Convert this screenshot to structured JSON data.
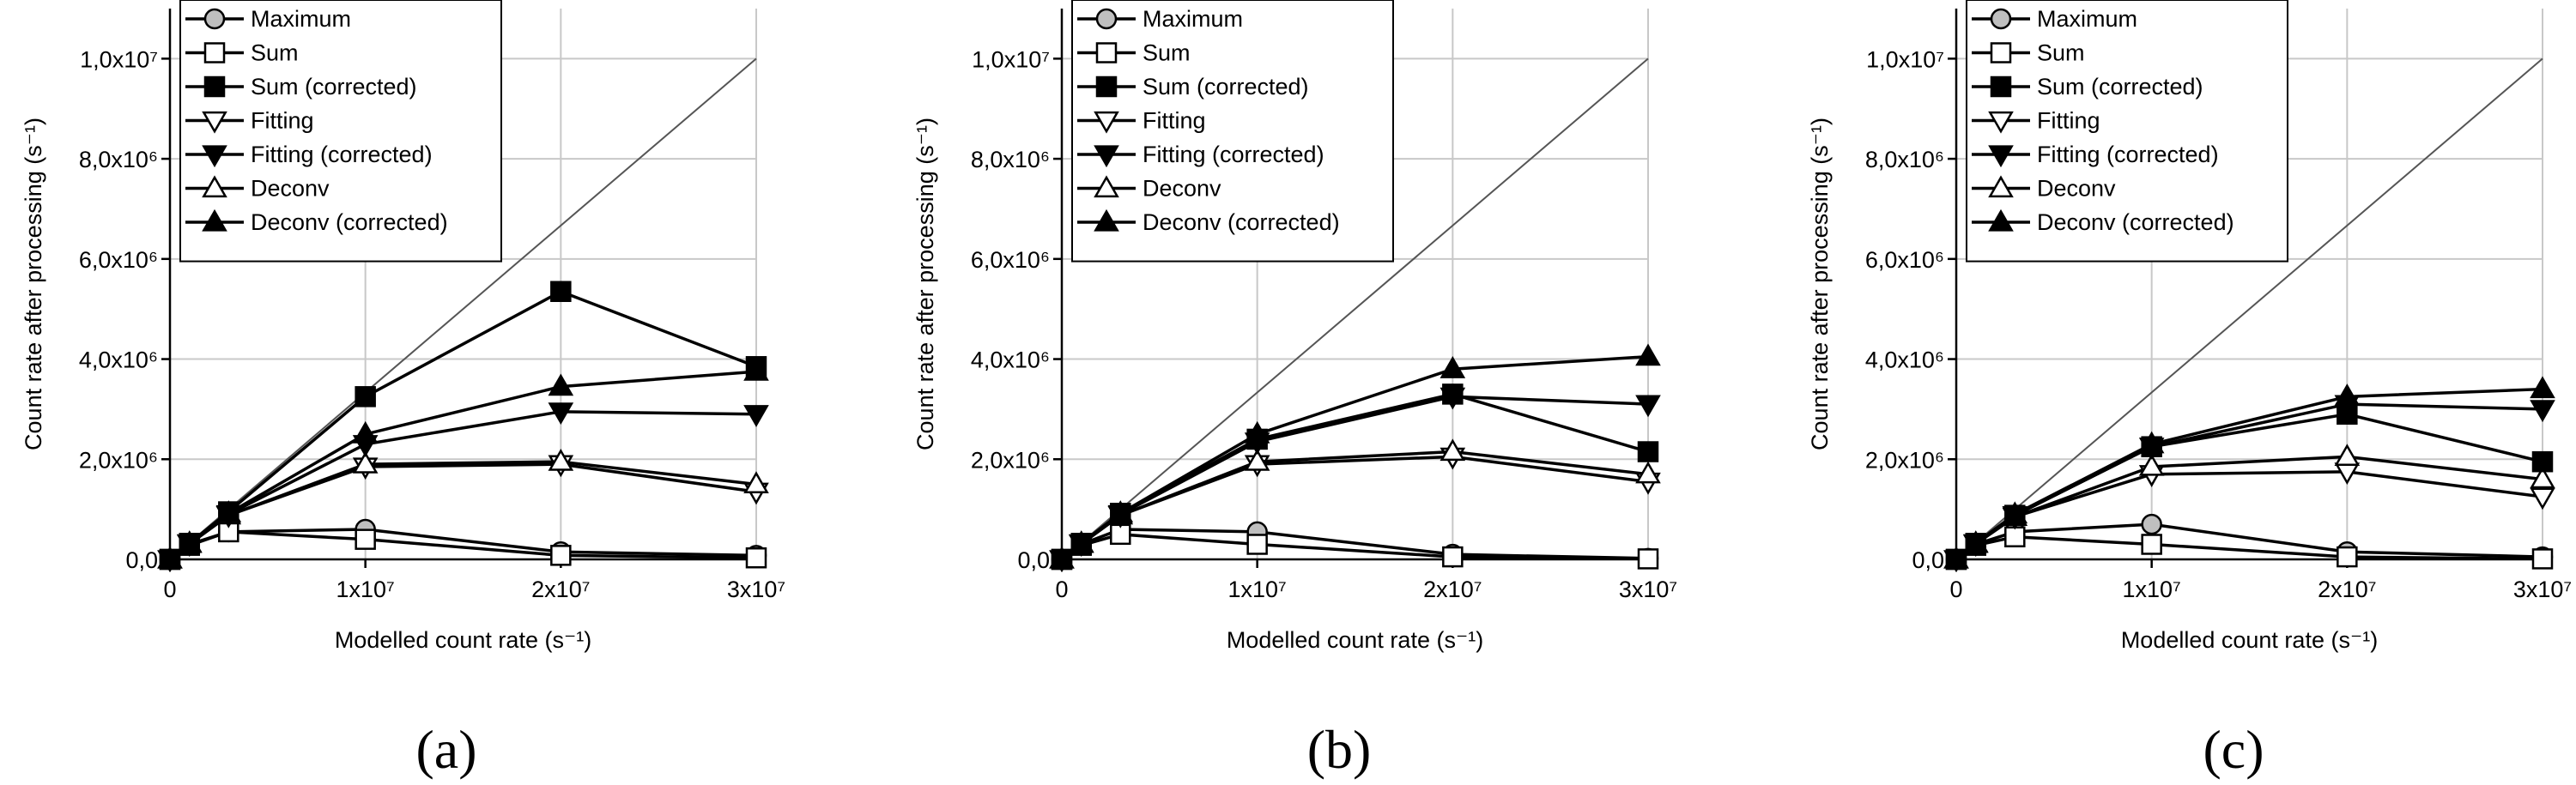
{
  "figure": {
    "captions": [
      "(a)",
      "(b)",
      "(c)"
    ]
  },
  "legend": {
    "entries": [
      {
        "name": "Maximum",
        "marker": "circle",
        "fill": "#bfbfbf"
      },
      {
        "name": "Sum",
        "marker": "square",
        "fill": "#ffffff"
      },
      {
        "name": "Sum (corrected)",
        "marker": "square",
        "fill": "#000000"
      },
      {
        "name": "Fitting",
        "marker": "triangle-down",
        "fill": "#ffffff"
      },
      {
        "name": "Fitting (corrected)",
        "marker": "triangle-down",
        "fill": "#000000"
      },
      {
        "name": "Deconv",
        "marker": "triangle-up",
        "fill": "#ffffff"
      },
      {
        "name": "Deconv (corrected)",
        "marker": "triangle-up",
        "fill": "#000000"
      }
    ]
  },
  "chart_data": [
    {
      "type": "line",
      "panel": "(a)",
      "xlabel": "Modelled count rate (s⁻¹)",
      "ylabel": "Count rate after processing (s⁻¹)",
      "xlim": [
        0,
        30000000
      ],
      "ylim": [
        0,
        11000000
      ],
      "xticks": [
        {
          "value": 0,
          "label": "0"
        },
        {
          "value": 10000000,
          "label": "1x10⁷"
        },
        {
          "value": 20000000,
          "label": "2x10⁷"
        },
        {
          "value": 30000000,
          "label": "3x10⁷"
        }
      ],
      "yticks": [
        {
          "value": 0,
          "label": "0,0"
        },
        {
          "value": 2000000,
          "label": "2,0x10⁶"
        },
        {
          "value": 4000000,
          "label": "4,0x10⁶"
        },
        {
          "value": 6000000,
          "label": "6,0x10⁶"
        },
        {
          "value": 8000000,
          "label": "8,0x10⁶"
        },
        {
          "value": 10000000,
          "label": "1,0x10⁷"
        }
      ],
      "grid": true,
      "legend_position": "top-left",
      "identity_line": true,
      "x": [
        0,
        1000000,
        3000000,
        10000000,
        20000000,
        30000000
      ],
      "series": [
        {
          "name": "Maximum",
          "values": [
            0,
            300000,
            550000,
            600000,
            150000,
            80000
          ]
        },
        {
          "name": "Sum",
          "values": [
            0,
            280000,
            550000,
            400000,
            80000,
            30000
          ]
        },
        {
          "name": "Sum (corrected)",
          "values": [
            0,
            320000,
            950000,
            3250000,
            5350000,
            3850000
          ]
        },
        {
          "name": "Fitting",
          "values": [
            0,
            310000,
            880000,
            1850000,
            1900000,
            1350000
          ]
        },
        {
          "name": "Fitting (corrected)",
          "values": [
            0,
            320000,
            900000,
            2300000,
            2950000,
            2900000
          ]
        },
        {
          "name": "Deconv",
          "values": [
            0,
            310000,
            880000,
            1900000,
            1950000,
            1500000
          ]
        },
        {
          "name": "Deconv (corrected)",
          "values": [
            0,
            320000,
            920000,
            2500000,
            3450000,
            3750000
          ]
        }
      ]
    },
    {
      "type": "line",
      "panel": "(b)",
      "xlabel": "Modelled count rate (s⁻¹)",
      "ylabel": "Count rate after processing (s⁻¹)",
      "xlim": [
        0,
        30000000
      ],
      "ylim": [
        0,
        11000000
      ],
      "xticks": [
        {
          "value": 0,
          "label": "0"
        },
        {
          "value": 10000000,
          "label": "1x10⁷"
        },
        {
          "value": 20000000,
          "label": "2x10⁷"
        },
        {
          "value": 30000000,
          "label": "3x10⁷"
        }
      ],
      "yticks": [
        {
          "value": 0,
          "label": "0,0"
        },
        {
          "value": 2000000,
          "label": "2,0x10⁶"
        },
        {
          "value": 4000000,
          "label": "4,0x10⁶"
        },
        {
          "value": 6000000,
          "label": "6,0x10⁶"
        },
        {
          "value": 8000000,
          "label": "8,0x10⁶"
        },
        {
          "value": 10000000,
          "label": "1,0x10⁷"
        }
      ],
      "grid": true,
      "legend_position": "top-left",
      "identity_line": true,
      "x": [
        0,
        1000000,
        3000000,
        10000000,
        20000000,
        30000000
      ],
      "series": [
        {
          "name": "Maximum",
          "values": [
            0,
            300000,
            600000,
            550000,
            100000,
            20000
          ]
        },
        {
          "name": "Sum",
          "values": [
            0,
            280000,
            500000,
            300000,
            50000,
            10000
          ]
        },
        {
          "name": "Sum (corrected)",
          "values": [
            0,
            320000,
            920000,
            2400000,
            3300000,
            2150000
          ]
        },
        {
          "name": "Fitting",
          "values": [
            0,
            310000,
            880000,
            1900000,
            2050000,
            1550000
          ]
        },
        {
          "name": "Fitting (corrected)",
          "values": [
            0,
            320000,
            900000,
            2350000,
            3250000,
            3100000
          ]
        },
        {
          "name": "Deconv",
          "values": [
            0,
            310000,
            880000,
            1950000,
            2150000,
            1700000
          ]
        },
        {
          "name": "Deconv (corrected)",
          "values": [
            0,
            320000,
            920000,
            2500000,
            3800000,
            4050000
          ]
        }
      ]
    },
    {
      "type": "line",
      "panel": "(c)",
      "xlabel": "Modelled count rate (s⁻¹)",
      "ylabel": "Count rate after processing (s⁻¹)",
      "xlim": [
        0,
        30000000
      ],
      "ylim": [
        0,
        11000000
      ],
      "xticks": [
        {
          "value": 0,
          "label": "0"
        },
        {
          "value": 10000000,
          "label": "1x10⁷"
        },
        {
          "value": 20000000,
          "label": "2x10⁷"
        },
        {
          "value": 30000000,
          "label": "3x10⁷"
        }
      ],
      "yticks": [
        {
          "value": 0,
          "label": "0,0"
        },
        {
          "value": 2000000,
          "label": "2,0x10⁶"
        },
        {
          "value": 4000000,
          "label": "4,0x10⁶"
        },
        {
          "value": 6000000,
          "label": "6,0x10⁶"
        },
        {
          "value": 8000000,
          "label": "8,0x10⁶"
        },
        {
          "value": 10000000,
          "label": "1,0x10⁷"
        }
      ],
      "grid": true,
      "legend_position": "top-left",
      "identity_line": true,
      "x": [
        0,
        1000000,
        3000000,
        10000000,
        20000000,
        30000000
      ],
      "series": [
        {
          "name": "Maximum",
          "values": [
            0,
            300000,
            550000,
            700000,
            150000,
            50000
          ]
        },
        {
          "name": "Sum",
          "values": [
            0,
            280000,
            450000,
            300000,
            50000,
            10000
          ]
        },
        {
          "name": "Sum (corrected)",
          "values": [
            0,
            320000,
            880000,
            2250000,
            2900000,
            1950000
          ]
        },
        {
          "name": "Fitting",
          "values": [
            0,
            310000,
            850000,
            1700000,
            1750000,
            1250000
          ]
        },
        {
          "name": "Fitting (corrected)",
          "values": [
            0,
            320000,
            880000,
            2250000,
            3100000,
            3000000
          ]
        },
        {
          "name": "Deconv",
          "values": [
            0,
            310000,
            850000,
            1850000,
            2050000,
            1600000
          ]
        },
        {
          "name": "Deconv (corrected)",
          "values": [
            0,
            320000,
            900000,
            2300000,
            3250000,
            3400000
          ]
        }
      ]
    }
  ]
}
